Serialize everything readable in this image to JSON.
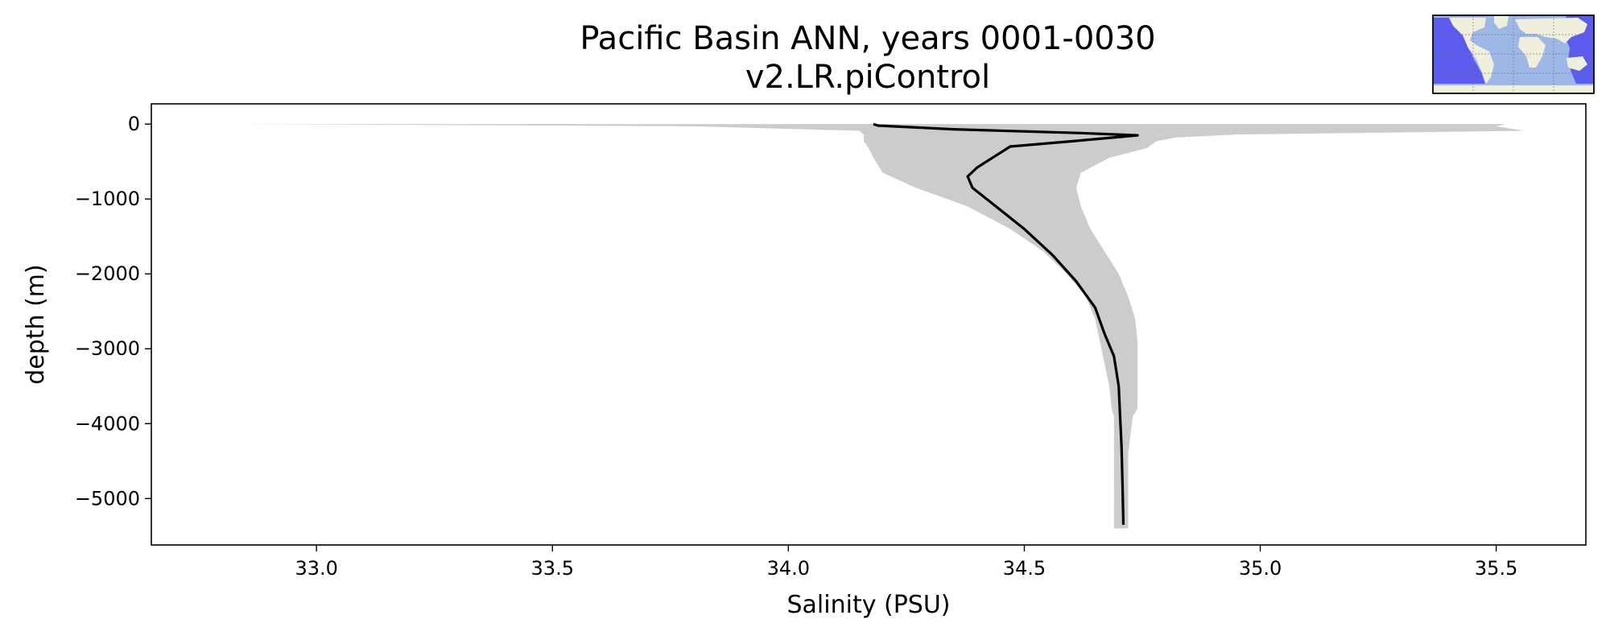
{
  "chart_data": {
    "type": "line",
    "title": "Pacific Basin ANN, years 0001-0030",
    "subtitle": "v2.LR.piControl",
    "xlabel": "Salinity (PSU)",
    "ylabel": "depth (m)",
    "xlim": [
      32.65,
      35.69
    ],
    "ylim": [
      -5620,
      270
    ],
    "x_ticks": [
      33.0,
      33.5,
      34.0,
      34.5,
      35.0,
      35.5
    ],
    "x_tick_labels": [
      "33.0",
      "33.5",
      "34.0",
      "34.5",
      "35.0",
      "35.5"
    ],
    "y_ticks": [
      0,
      -1000,
      -2000,
      -3000,
      -4000,
      -5000
    ],
    "y_tick_labels": [
      "0",
      "−1000",
      "−2000",
      "−3000",
      "−4000",
      "−5000"
    ],
    "grid": false,
    "legend": false,
    "colors": {
      "line": "#000000",
      "band": "#cccccc",
      "ocean_highlight": "#5b5bf0",
      "ocean": "#9db7e6",
      "land": "#efefdc"
    },
    "series": [
      {
        "kind": "line",
        "x": [
          34.18,
          34.19,
          34.35,
          34.62,
          34.74,
          34.6,
          34.47,
          34.44,
          34.4,
          34.38,
          34.39,
          34.44,
          34.5,
          34.56,
          34.61,
          34.65,
          34.67,
          34.69,
          34.7,
          34.703,
          34.706,
          34.708,
          34.71
        ],
        "y": [
          0,
          -20,
          -70,
          -120,
          -150,
          -230,
          -300,
          -420,
          -580,
          -700,
          -850,
          -1100,
          -1400,
          -1750,
          -2100,
          -2450,
          -2800,
          -3100,
          -3500,
          -3900,
          -4300,
          -4800,
          -5350
        ]
      },
      {
        "kind": "band",
        "depth": [
          0,
          -30,
          -90,
          -140,
          -180,
          -230,
          -320,
          -450,
          -650,
          -850,
          -1100,
          -1400,
          -1700,
          -2000,
          -2300,
          -2600,
          -2900,
          -3200,
          -3500,
          -3800,
          -3900,
          -4400,
          -5000,
          -5400
        ],
        "min": [
          32.82,
          33.8,
          34.15,
          34.16,
          34.16,
          34.16,
          34.17,
          34.18,
          34.2,
          34.27,
          34.38,
          34.47,
          34.54,
          34.59,
          34.63,
          34.65,
          34.66,
          34.67,
          34.68,
          34.685,
          34.69,
          34.69,
          34.69,
          34.69
        ],
        "max": [
          35.52,
          35.5,
          35.56,
          34.95,
          34.82,
          34.78,
          34.76,
          34.68,
          34.62,
          34.61,
          34.62,
          34.64,
          34.67,
          34.7,
          34.72,
          34.735,
          34.74,
          34.74,
          34.74,
          34.74,
          34.73,
          34.72,
          34.72,
          34.72
        ]
      }
    ]
  },
  "inset_map": {
    "name": "pacific-basin-mask-map",
    "highlighted_region": "Pacific Basin"
  }
}
